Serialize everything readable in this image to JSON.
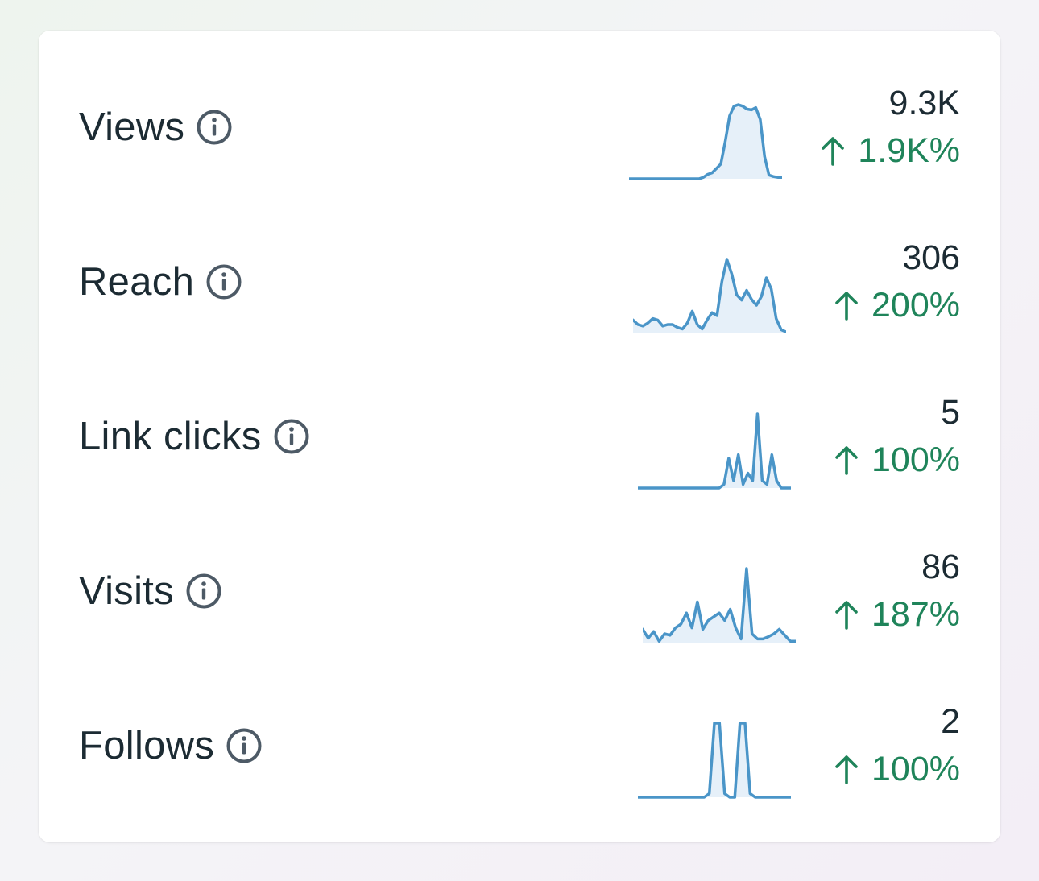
{
  "colors": {
    "label": "#1c2b33",
    "value": "#1c2b33",
    "positive": "#1f845a",
    "sparkline_stroke": "#4a95c8",
    "sparkline_fill": "#e6f0f9",
    "info_icon": "#4d5a66"
  },
  "metrics": [
    {
      "label": "Views",
      "info_icon": "info-icon",
      "value": "9.3K",
      "change_icon": "arrow-up-icon",
      "change": "1.9K%",
      "sparkline": [
        0,
        0,
        0,
        0,
        0,
        0,
        0,
        0,
        0,
        0,
        0,
        0,
        0,
        0,
        0,
        0,
        0,
        0.02,
        0.06,
        0.08,
        0.14,
        0.2,
        0.5,
        0.85,
        0.98,
        1,
        0.98,
        0.94,
        0.93,
        0.96,
        0.8,
        0.3,
        0.05,
        0.03,
        0.02,
        0.02
      ]
    },
    {
      "label": "Reach",
      "info_icon": "info-icon",
      "value": "306",
      "change_icon": "arrow-up-icon",
      "change": "200%",
      "sparkline": [
        0.18,
        0.12,
        0.1,
        0.14,
        0.2,
        0.18,
        0.1,
        0.12,
        0.12,
        0.08,
        0.06,
        0.14,
        0.3,
        0.12,
        0.06,
        0.18,
        0.28,
        0.24,
        0.7,
        1,
        0.8,
        0.52,
        0.45,
        0.58,
        0.46,
        0.38,
        0.5,
        0.75,
        0.6,
        0.2,
        0.05,
        0.02
      ]
    },
    {
      "label": "Link clicks",
      "info_icon": "info-icon",
      "value": "5",
      "change_icon": "arrow-up-icon",
      "change": "100%",
      "sparkline": [
        0,
        0,
        0,
        0,
        0,
        0,
        0,
        0,
        0,
        0,
        0,
        0,
        0,
        0,
        0,
        0,
        0,
        0,
        0.05,
        0.4,
        0.1,
        0.45,
        0.05,
        0.2,
        0.1,
        1,
        0.1,
        0.05,
        0.45,
        0.1,
        0,
        0,
        0
      ]
    },
    {
      "label": "Visits",
      "info_icon": "info-icon",
      "value": "86",
      "change_icon": "arrow-up-icon",
      "change": "187%",
      "sparkline": [
        0.18,
        0.06,
        0.15,
        0.02,
        0.12,
        0.1,
        0.2,
        0.25,
        0.4,
        0.2,
        0.55,
        0.18,
        0.3,
        0.35,
        0.4,
        0.3,
        0.45,
        0.2,
        0.05,
        1,
        0.12,
        0.05,
        0.05,
        0.08,
        0.12,
        0.18,
        0.1,
        0.02,
        0.02
      ]
    },
    {
      "label": "Follows",
      "info_icon": "info-icon",
      "value": "2",
      "change_icon": "arrow-up-icon",
      "change": "100%",
      "sparkline": [
        0,
        0,
        0,
        0,
        0,
        0,
        0,
        0,
        0,
        0,
        0,
        0,
        0,
        0,
        0.05,
        1,
        1,
        0.05,
        0,
        0,
        1,
        1,
        0.05,
        0,
        0,
        0,
        0,
        0,
        0,
        0,
        0
      ]
    }
  ]
}
